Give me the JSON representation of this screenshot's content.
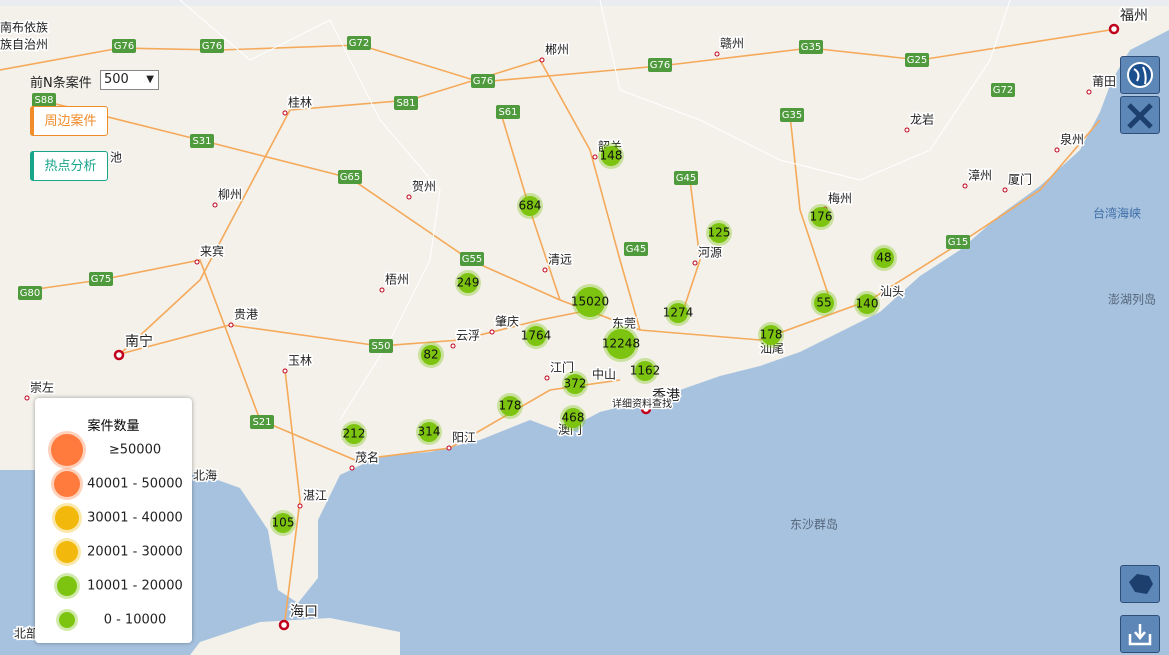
{
  "controls": {
    "top_n_label": "前N条案件",
    "top_n_value": "500",
    "buttons": [
      "周边案件",
      "热点分析"
    ]
  },
  "map": {
    "place_labels": [
      "南布依族",
      "族自治州",
      "郴州",
      "赣州",
      "福州",
      "莆田",
      "桂林",
      "韶关",
      "龙岩",
      "泉州",
      "柳州",
      "贺州",
      "梅州",
      "漳州",
      "厦门",
      "来宾",
      "清远",
      "河源",
      "梧州",
      "汕头",
      "贵港",
      "肇庆",
      "云浮",
      "东莞",
      "南宁",
      "玉林",
      "江门",
      "中山",
      "汕尾",
      "崇左",
      "香港",
      "澳门",
      "阳江",
      "茂名",
      "北海",
      "湛江",
      "海口",
      "北部",
      "池",
      "详细资料查找"
    ],
    "sea_labels": [
      "台湾海峡",
      "澎湖列岛",
      "东沙群岛"
    ],
    "road_labels": [
      "G76",
      "G76",
      "G72",
      "G76",
      "G76",
      "G35",
      "G25",
      "S88",
      "S81",
      "S61",
      "G72",
      "G35",
      "S31",
      "G65",
      "G45",
      "G55",
      "G45",
      "G15",
      "G75",
      "G80",
      "S50",
      "S21"
    ]
  },
  "clusters": [
    148,
    684,
    125,
    176,
    48,
    249,
    15020,
    55,
    140,
    1274,
    1764,
    12248,
    178,
    82,
    1162,
    372,
    178,
    468,
    212,
    314,
    105
  ],
  "legend": {
    "title": "案件数量",
    "items": [
      {
        "label": "≥50000",
        "color": "#ff7a3d"
      },
      {
        "label": "40001 - 50000",
        "color": "#ff7a3d"
      },
      {
        "label": "30001 - 40000",
        "color": "#f2b90c"
      },
      {
        "label": "20001 - 30000",
        "color": "#f2b90c"
      },
      {
        "label": "10001 - 20000",
        "color": "#7cc40f"
      },
      {
        "label": "0 - 10000",
        "color": "#7cc40f"
      }
    ]
  }
}
